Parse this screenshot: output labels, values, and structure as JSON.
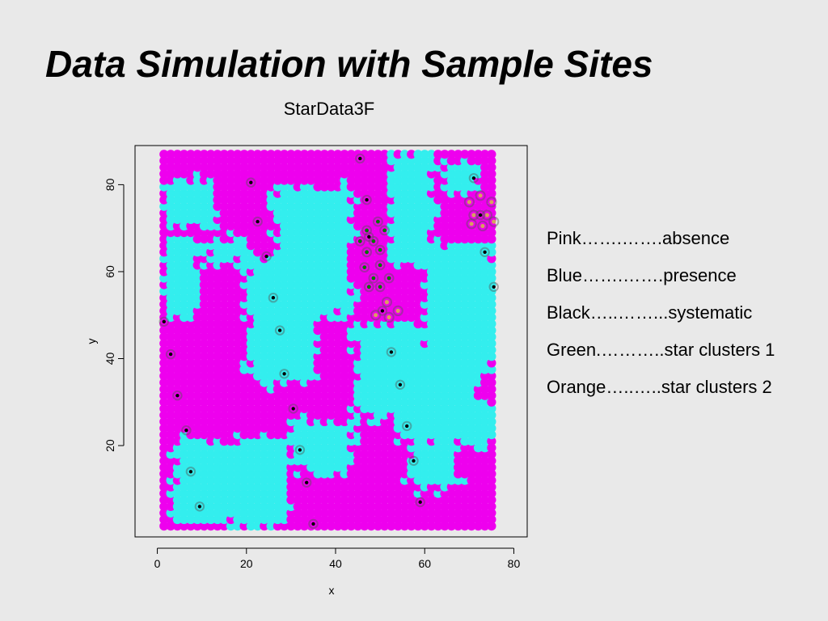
{
  "slide": {
    "title": "Data Simulation with Sample Sites"
  },
  "legend": {
    "entries": [
      "Pink…….…….absence",
      "Blue…….…….presence",
      "Black…..……...systematic",
      "Green.………..star clusters 1",
      "Orange…..…..star clusters 2"
    ]
  },
  "colors": {
    "absence": "#ee00ee",
    "presence": "#33eeee",
    "systematic": "#000000",
    "star_cluster_1": "#007700",
    "star_cluster_2": "#d8a060"
  },
  "chart_data": {
    "type": "scatter",
    "title": "StarData3F",
    "xlabel": "x",
    "ylabel": "y",
    "xlim": [
      -5,
      83
    ],
    "ylim": [
      -1,
      89
    ],
    "x_ticks": [
      0,
      20,
      40,
      60,
      80
    ],
    "y_ticks": [
      20,
      40,
      60,
      80
    ],
    "grid": false,
    "field": {
      "x_range": [
        1.5,
        75.5
      ],
      "y_range": [
        1.5,
        87.5
      ],
      "step": 1.5,
      "description_classes": [
        "absence",
        "presence"
      ],
      "presence_regions": [
        {
          "x": [
            2,
            10
          ],
          "y": [
            50,
            68
          ]
        },
        {
          "x": [
            2,
            14
          ],
          "y": [
            70,
            82
          ]
        },
        {
          "x": [
            4,
            30
          ],
          "y": [
            2,
            22
          ]
        },
        {
          "x": [
            12,
            22
          ],
          "y": [
            62,
            68
          ]
        },
        {
          "x": [
            20,
            36
          ],
          "y": [
            34,
            62
          ]
        },
        {
          "x": [
            26,
            44
          ],
          "y": [
            50,
            80
          ]
        },
        {
          "x": [
            30,
            44
          ],
          "y": [
            14,
            26
          ]
        },
        {
          "x": [
            44,
            58
          ],
          "y": [
            26,
            48
          ]
        },
        {
          "x": [
            52,
            62
          ],
          "y": [
            62,
            88
          ]
        },
        {
          "x": [
            54,
            72
          ],
          "y": [
            20,
            42
          ]
        },
        {
          "x": [
            56,
            68
          ],
          "y": [
            10,
            22
          ]
        },
        {
          "x": [
            60,
            76
          ],
          "y": [
            36,
            66
          ]
        },
        {
          "x": [
            64,
            72
          ],
          "y": [
            78,
            86
          ]
        },
        {
          "x": [
            66,
            76
          ],
          "y": [
            20,
            30
          ]
        }
      ]
    },
    "systematic_points": [
      [
        45.5,
        86
      ],
      [
        21,
        80.5
      ],
      [
        71,
        81.5
      ],
      [
        47,
        76.5
      ],
      [
        22.5,
        71.5
      ],
      [
        24.5,
        63.5
      ],
      [
        73.5,
        64.5
      ],
      [
        47.5,
        68
      ],
      [
        26,
        54
      ],
      [
        75.5,
        56.5
      ],
      [
        1.5,
        48.5
      ],
      [
        27.5,
        46.5
      ],
      [
        3,
        41
      ],
      [
        52.5,
        41.5
      ],
      [
        28.5,
        36.5
      ],
      [
        4.5,
        31.5
      ],
      [
        54.5,
        34
      ],
      [
        30.5,
        28.5
      ],
      [
        6.5,
        23.5
      ],
      [
        56,
        24.5
      ],
      [
        32,
        19
      ],
      [
        7.5,
        14
      ],
      [
        57.5,
        16.5
      ],
      [
        33.5,
        11.5
      ],
      [
        9.5,
        6
      ],
      [
        59,
        7
      ],
      [
        35,
        2
      ],
      [
        72.5,
        73
      ],
      [
        50.5,
        51
      ]
    ],
    "star_cluster_1_points": [
      [
        45.5,
        67
      ],
      [
        47,
        69.5
      ],
      [
        48.5,
        67
      ],
      [
        50,
        65
      ],
      [
        47,
        64.5
      ],
      [
        49.5,
        71.5
      ],
      [
        51,
        69.5
      ],
      [
        46.5,
        61
      ],
      [
        48.5,
        58.5
      ],
      [
        50,
        61.5
      ],
      [
        47.5,
        56.5
      ],
      [
        52,
        58.5
      ],
      [
        50,
        56.5
      ]
    ],
    "star_cluster_2_points": [
      [
        70,
        76
      ],
      [
        72.5,
        77.5
      ],
      [
        75,
        76
      ],
      [
        71,
        73
      ],
      [
        74,
        73
      ],
      [
        70.5,
        71
      ],
      [
        73,
        70.5
      ],
      [
        75.5,
        71.5
      ],
      [
        49,
        50
      ],
      [
        51.5,
        53
      ],
      [
        54,
        51
      ],
      [
        52,
        49.5
      ]
    ]
  }
}
